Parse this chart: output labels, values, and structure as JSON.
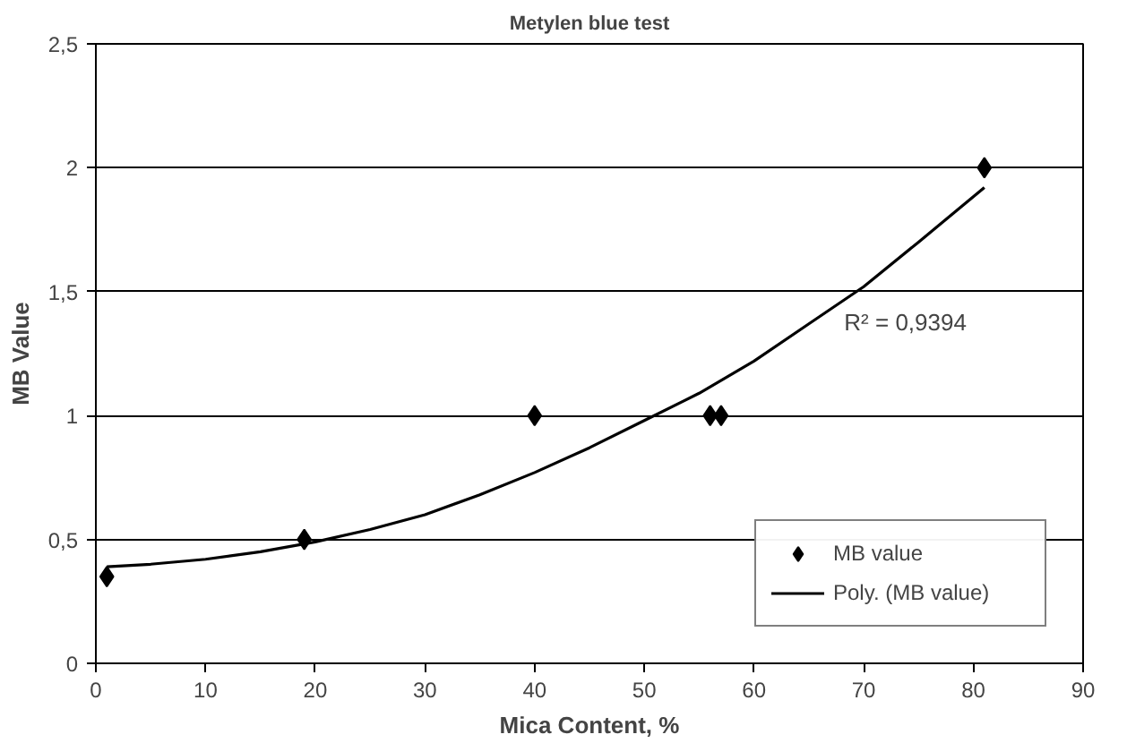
{
  "chart_data": {
    "type": "scatter",
    "title": "Metylen blue test",
    "xlabel": "Mica Content, %",
    "ylabel": "MB Value",
    "xlim": [
      0,
      90
    ],
    "xticks": [
      0,
      10,
      20,
      30,
      40,
      50,
      60,
      70,
      80,
      90
    ],
    "ylim": [
      0,
      2.5
    ],
    "yticks": [
      0,
      {
        "value": 0.5,
        "label": "0,5"
      },
      1,
      {
        "value": 1.5,
        "label": "1,5"
      },
      2,
      {
        "value": 2.5,
        "label": "2,5"
      }
    ],
    "series": [
      {
        "name": "MB value",
        "color": "#000000",
        "marker": "diamond",
        "x": [
          1,
          19,
          40,
          56,
          57,
          81
        ],
        "values": [
          0.35,
          0.5,
          1,
          1,
          1,
          2
        ]
      },
      {
        "name": "Poly. (MB value)",
        "type": "line",
        "color": "#000000",
        "line_style": "solid",
        "x": [
          1,
          5,
          10,
          15,
          20,
          25,
          30,
          35,
          40,
          45,
          50,
          55,
          60,
          65,
          70,
          75,
          81
        ],
        "values": [
          0.39,
          0.4,
          0.42,
          0.45,
          0.49,
          0.54,
          0.6,
          0.68,
          0.77,
          0.87,
          0.98,
          1.09,
          1.22,
          1.37,
          1.52,
          1.7,
          1.92
        ]
      }
    ],
    "annotations": [
      "R² = 0,9394"
    ],
    "grid": "y",
    "legend": "bottom right"
  }
}
